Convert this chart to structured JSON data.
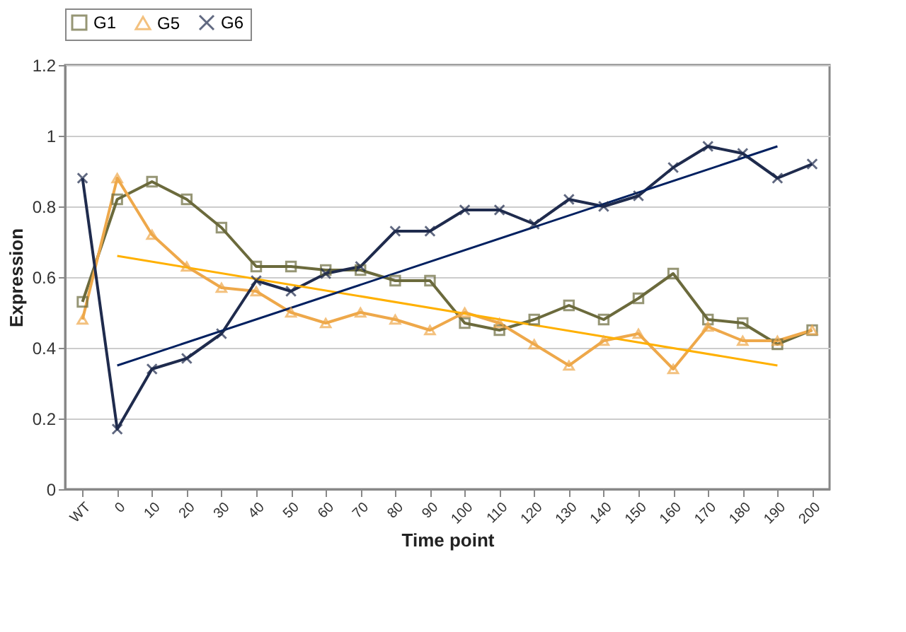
{
  "chart_data": {
    "type": "line",
    "xlabel": "Time point",
    "ylabel": "Expression",
    "categories": [
      "WT",
      "0",
      "10",
      "20",
      "30",
      "40",
      "50",
      "60",
      "70",
      "80",
      "90",
      "100",
      "110",
      "120",
      "130",
      "140",
      "150",
      "160",
      "170",
      "180",
      "190",
      "200"
    ],
    "series": [
      {
        "name": "G1",
        "color": "#6b6a3c",
        "marker": "square",
        "values": [
          0.53,
          0.82,
          0.87,
          0.82,
          0.74,
          0.63,
          0.63,
          0.62,
          0.62,
          0.59,
          0.59,
          0.47,
          0.45,
          0.48,
          0.52,
          0.48,
          0.54,
          0.61,
          0.48,
          0.47,
          0.41,
          0.45
        ]
      },
      {
        "name": "G5",
        "color": "#eea84a",
        "marker": "triangle",
        "values": [
          0.48,
          0.88,
          0.72,
          0.63,
          0.57,
          0.56,
          0.5,
          0.47,
          0.5,
          0.48,
          0.45,
          0.5,
          0.47,
          0.41,
          0.35,
          0.42,
          0.44,
          0.34,
          0.46,
          0.42,
          0.42,
          0.45
        ]
      },
      {
        "name": "G6",
        "color": "#1f2b4d",
        "marker": "cross",
        "values": [
          0.88,
          0.17,
          0.34,
          0.37,
          0.44,
          0.59,
          0.56,
          0.61,
          0.63,
          0.73,
          0.73,
          0.79,
          0.79,
          0.75,
          0.82,
          0.8,
          0.83,
          0.91,
          0.97,
          0.95,
          0.88,
          0.92
        ]
      },
      {
        "type": "line",
        "color": "#ffb000",
        "marker": "none",
        "x": [
          "0",
          "190"
        ],
        "values": [
          0.66,
          0.35
        ]
      },
      {
        "type": "line",
        "color": "#002060",
        "marker": "none",
        "x": [
          "0",
          "190"
        ],
        "values": [
          0.35,
          0.97
        ]
      }
    ],
    "ylim": [
      0,
      1.2
    ],
    "yticks": [
      0,
      0.2,
      0.4,
      0.6,
      0.8,
      1,
      1.2
    ],
    "grid": "y",
    "legend": "top"
  }
}
